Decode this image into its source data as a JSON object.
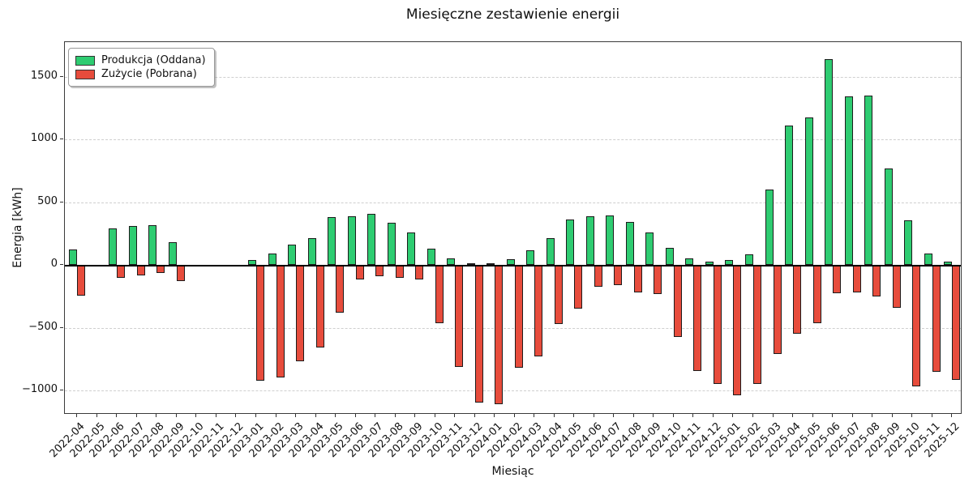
{
  "title": "Miesięczne zestawienie energii",
  "legend": {
    "items": [
      {
        "label": "Produkcja (Oddana)",
        "color": "#2ecc71"
      },
      {
        "label": "Zużycie (Pobrana)",
        "color": "#e74c3c"
      }
    ]
  },
  "colors": {
    "production": "#2ecc71",
    "consumption": "#e74c3c",
    "bar_edge": "#1c1c1c",
    "grid": "#cfcfcf",
    "zero_line": "#000000",
    "background": "#ffffff"
  },
  "chart_data": {
    "type": "bar",
    "title": "Miesięczne zestawienie energii",
    "xlabel": "Miesiąc",
    "ylabel": "Energia [kWh]",
    "grid": true,
    "legend_position": "upper left",
    "ylim": [
      -1193,
      1777
    ],
    "yticks": [
      -1000,
      -500,
      0,
      500,
      1000,
      1500
    ],
    "ytick_labels": [
      "−1000",
      "−500",
      "0",
      "500",
      "1000",
      "1500"
    ],
    "categories": [
      "2022-04",
      "2022-05",
      "2022-06",
      "2022-07",
      "2022-08",
      "2022-09",
      "2022-10",
      "2022-11",
      "2022-12",
      "2023-01",
      "2023-02",
      "2023-03",
      "2023-04",
      "2023-05",
      "2023-06",
      "2023-07",
      "2023-08",
      "2023-09",
      "2023-10",
      "2023-11",
      "2023-12",
      "2024-01",
      "2024-02",
      "2024-03",
      "2024-04",
      "2024-05",
      "2024-06",
      "2024-07",
      "2024-08",
      "2024-09",
      "2024-10",
      "2024-11",
      "2024-12",
      "2025-01",
      "2025-02",
      "2025-03",
      "2025-04",
      "2025-05",
      "2025-06",
      "2025-07",
      "2025-08",
      "2025-09",
      "2025-10",
      "2025-11",
      "2025-12"
    ],
    "series": [
      {
        "name": "Produkcja (Oddana)",
        "color": "#2ecc71",
        "values": [
          125,
          0,
          290,
          310,
          320,
          185,
          0,
          0,
          0,
          40,
          90,
          160,
          215,
          385,
          390,
          410,
          335,
          260,
          130,
          50,
          15,
          15,
          45,
          115,
          215,
          365,
          390,
          395,
          345,
          260,
          140,
          55,
          25,
          40,
          85,
          605,
          1110,
          1175,
          1640,
          1345,
          1350,
          770,
          355,
          95,
          30
        ]
      },
      {
        "name": "Zużycie (Pobrana)",
        "color": "#e74c3c",
        "values": [
          -245,
          0,
          -100,
          -80,
          -60,
          -130,
          0,
          0,
          0,
          -925,
          -895,
          -765,
          -655,
          -380,
          -115,
          -90,
          -100,
          -115,
          -465,
          -810,
          -1095,
          -1110,
          -820,
          -730,
          -470,
          -345,
          -175,
          -160,
          -215,
          -230,
          -570,
          -845,
          -945,
          -1040,
          -945,
          -710,
          -545,
          -465,
          -225,
          -220,
          -250,
          -340,
          -970,
          -850,
          -915
        ]
      }
    ]
  }
}
